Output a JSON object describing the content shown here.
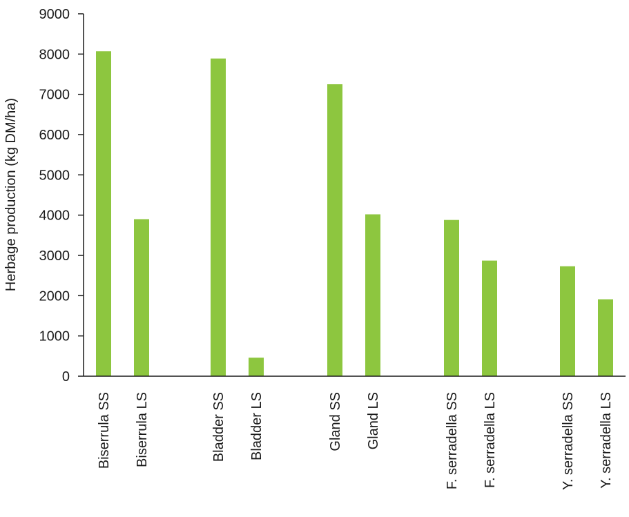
{
  "chart_data": {
    "type": "bar",
    "title": "",
    "xlabel": "",
    "ylabel": "Herbage production (kg DM/ha)",
    "ylim": [
      0,
      9000
    ],
    "yticks": [
      0,
      1000,
      2000,
      3000,
      4000,
      5000,
      6000,
      7000,
      8000,
      9000
    ],
    "grid": false,
    "categories": [
      "Biserrula SS",
      "Biserrula LS",
      "Bladder SS",
      "Bladder LS",
      "Gland SS",
      "Gland LS",
      "F. serradella SS",
      "F. serradella LS",
      "Y. serradella SS",
      "Y. serradella LS"
    ],
    "values": [
      8070,
      3900,
      7890,
      460,
      7250,
      4020,
      3880,
      2870,
      2730,
      1910
    ],
    "bar_color": "#8dc63f"
  }
}
